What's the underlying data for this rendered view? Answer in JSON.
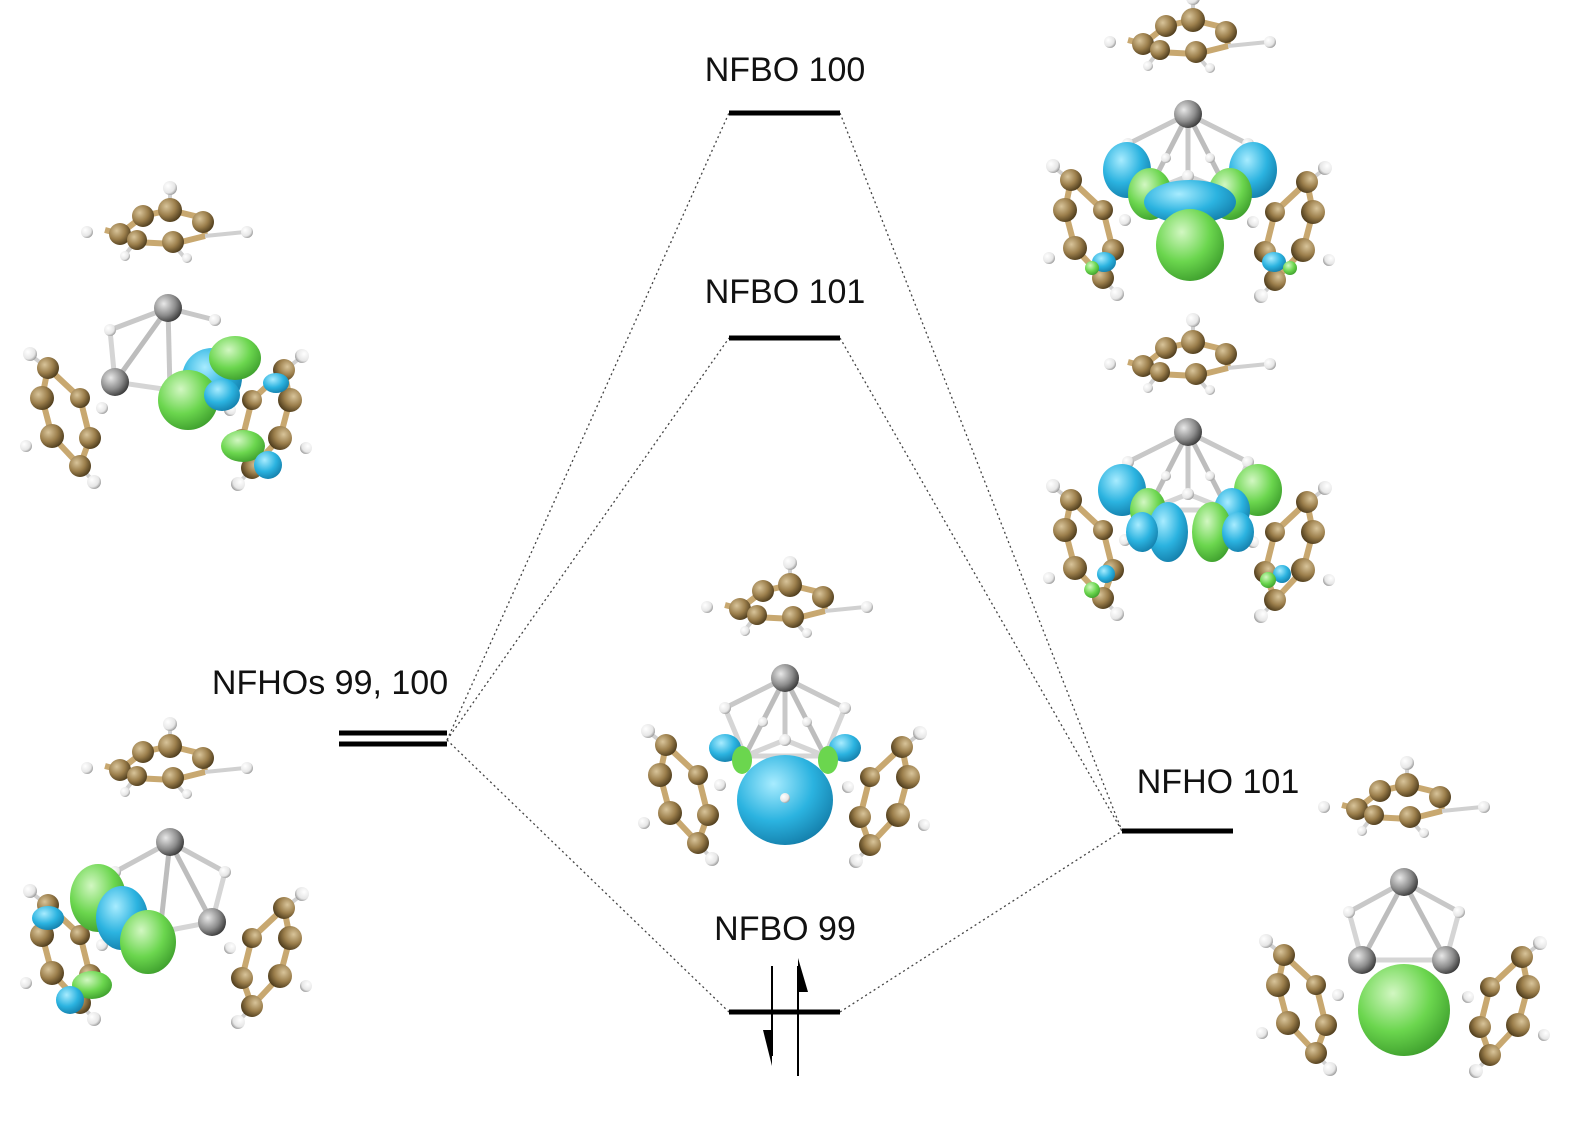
{
  "colors": {
    "level_line": "#000000",
    "connector": "#444444",
    "carbon": "#9c7f4c",
    "hydrogen": "#f0f0f0",
    "metal": "#9a9a9a",
    "bond": "#c8c8c8",
    "orbital_positive": "#2bb3e0",
    "orbital_negative": "#6bd64e"
  },
  "levels": [
    {
      "id": "nfbo-100",
      "label": "NFBO 100"
    },
    {
      "id": "nfbo-101",
      "label": "NFBO 101"
    },
    {
      "id": "nfhos-99-100",
      "label": "NFHOs 99, 100"
    },
    {
      "id": "nfbo-99",
      "label": "NFBO 99"
    },
    {
      "id": "nfho-101",
      "label": "NFHO 101"
    }
  ],
  "electrons": {
    "count": 2,
    "paired": true
  },
  "orbital_pictures": [
    {
      "name": "nfhos-99-100-upper-orbital",
      "lobes": [
        "positive",
        "negative"
      ]
    },
    {
      "name": "nfhos-99-100-lower-orbital",
      "lobes": [
        "positive",
        "negative"
      ]
    },
    {
      "name": "nfbo-100-orbital",
      "lobes": [
        "positive",
        "negative"
      ]
    },
    {
      "name": "nfbo-101-orbital",
      "lobes": [
        "positive",
        "negative"
      ]
    },
    {
      "name": "nfbo-99-orbital",
      "lobes": [
        "positive"
      ]
    },
    {
      "name": "nfho-101-orbital",
      "lobes": [
        "negative"
      ]
    }
  ]
}
